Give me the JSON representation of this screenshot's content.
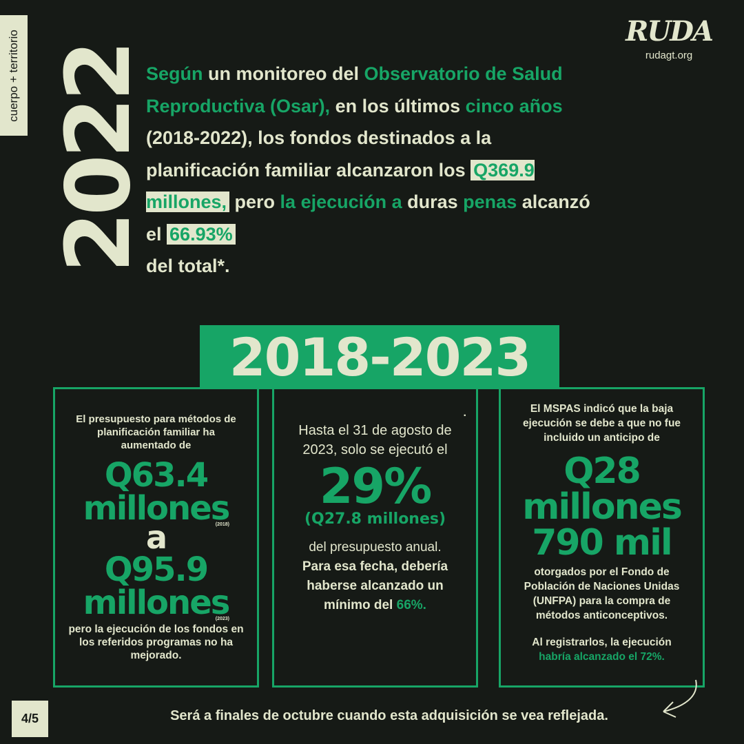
{
  "side_tag": "cuerpo + territorio",
  "year": "2022",
  "logo": {
    "mark": "RUDA",
    "url": "rudagt.org"
  },
  "intro": [
    "Según",
    " un monitoreo del ",
    "Observatorio de Salud Reproductiva (Osar),",
    "  en los últimos ",
    "cinco años",
    " (2018-2022), los fondos destinados a la planificación familiar alcanzaron los ",
    "Q369.9 millones,",
    " pero ",
    "la ejecución a",
    " duras ",
    "penas",
    " alcanzó el ",
    "66.93%",
    " del total*."
  ],
  "band": "2018-2023",
  "box1": {
    "lead": "El presupuesto para métodos de planificación familiar ha aumentado de",
    "from": "Q63.4",
    "from_unit": "millones",
    "from_year": "(2018)",
    "a": "a",
    "to": "Q95.9",
    "to_unit": "millones",
    "to_year": "(2023)",
    "t1": "pero ",
    "t2": "la ejecución",
    "t3": " de los fondos en los referidos programas ",
    "t4": "no ha mejorado."
  },
  "box2": {
    "dot": ".",
    "lead": "Hasta el 31 de agosto de 2023, solo se ejecutó el",
    "pct": "29%",
    "amount": "(Q27.8 millones)",
    "t1": "del presupuesto anual.",
    "t2": "Para esa fecha, debería haberse alcanzado un mínimo del ",
    "t3": "66%."
  },
  "box3": {
    "l1": "El MSPAS indicó que la baja ejecución se debe a que ",
    "l2": "no fue incluido",
    "l3": " un anticipo de",
    "n1": "Q28",
    "n2": "millones",
    "n3": "790 mil",
    "t1": "otorgados por el Fondo de Población de Naciones Unidas (UNFPA) para la compra de métodos anticonceptivos.",
    "t2": "Al registrarlos, la ejecución",
    "t3": "habría alcanzado el 72%."
  },
  "footer": "Será a finales de octubre cuando esta adquisición se vea reflejada.",
  "page": "4/5",
  "colors": {
    "background": "#161a16",
    "accent": "#17a566",
    "cream": "#e2e6cc"
  }
}
